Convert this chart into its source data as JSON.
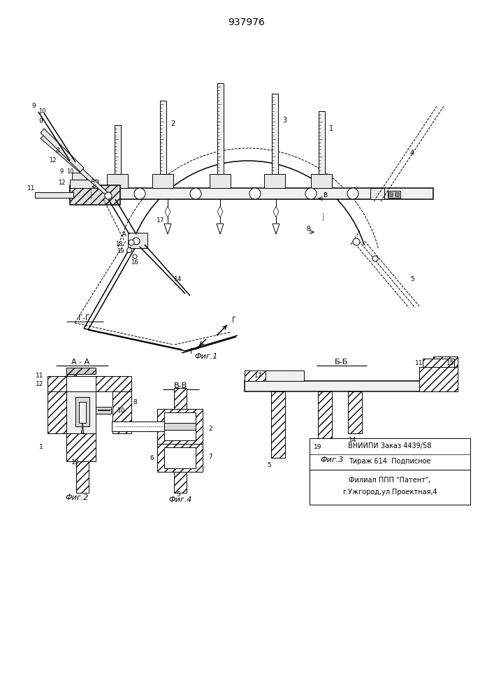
{
  "title": "937976",
  "bg_color": "#ffffff",
  "fig1_label": "Фиг.1",
  "fig2_label": "Фиг.2",
  "fig3_label": "Фиг.3",
  "fig4_label": "Фиг.4",
  "section_gg": "Г-Г",
  "section_aa": "А - А",
  "section_bb_cyr": "Б-Б",
  "section_vv": "В-В",
  "footer_line1": "ВНИИПИ Заказ 4439/58",
  "footer_line2": "Тираж 614  Подписное",
  "footer_line3": "Филиал ППП \"Патент\",",
  "footer_line4": "г.Ужгород,ул.Проектная,4"
}
